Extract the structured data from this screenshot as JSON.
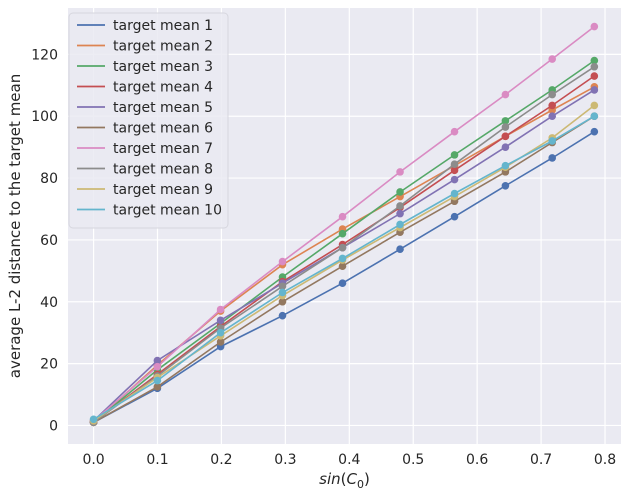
{
  "chart_data": {
    "type": "line",
    "title": "",
    "xlabel_prefix": "sin",
    "xlabel_var": "C",
    "xlabel_sub": "0",
    "ylabel": "average L-2 distance to the target mean",
    "xlim": [
      -0.04,
      0.825
    ],
    "ylim": [
      -6,
      135
    ],
    "xticks": [
      0.0,
      0.1,
      0.2,
      0.3,
      0.4,
      0.5,
      0.6,
      0.7,
      0.8
    ],
    "xtick_labels": [
      "0.0",
      "0.1",
      "0.2",
      "0.3",
      "0.4",
      "0.5",
      "0.6",
      "0.7",
      "0.8"
    ],
    "yticks": [
      0,
      20,
      40,
      60,
      80,
      100,
      120
    ],
    "ytick_labels": [
      "0",
      "20",
      "40",
      "60",
      "80",
      "100",
      "120"
    ],
    "grid": true,
    "legend_position": "top-left",
    "background": "#eaeaf2",
    "x": [
      0.0,
      0.0998,
      0.1987,
      0.2955,
      0.3894,
      0.4794,
      0.5646,
      0.6442,
      0.7174,
      0.7833
    ],
    "series": [
      {
        "name": "target mean 1",
        "color": "#4c72b0",
        "values": [
          1.0,
          12.0,
          25.5,
          35.5,
          46.0,
          57.0,
          67.5,
          77.5,
          86.5,
          95.0
        ]
      },
      {
        "name": "target mean 2",
        "color": "#dd8452",
        "values": [
          1.0,
          19.5,
          37.0,
          52.0,
          63.5,
          74.0,
          84.0,
          93.5,
          102.0,
          109.5
        ]
      },
      {
        "name": "target mean 3",
        "color": "#55a868",
        "values": [
          1.0,
          18.0,
          33.0,
          48.0,
          62.0,
          75.5,
          87.5,
          98.5,
          108.5,
          118.0
        ]
      },
      {
        "name": "target mean 4",
        "color": "#c44e52",
        "values": [
          1.0,
          16.5,
          32.0,
          46.5,
          58.5,
          70.5,
          82.5,
          93.5,
          103.5,
          113.0
        ]
      },
      {
        "name": "target mean 5",
        "color": "#8172b3",
        "values": [
          1.5,
          21.0,
          34.0,
          46.0,
          57.5,
          68.5,
          79.5,
          90.0,
          100.0,
          108.5
        ]
      },
      {
        "name": "target mean 6",
        "color": "#937860",
        "values": [
          1.0,
          12.5,
          27.0,
          40.0,
          51.5,
          62.5,
          72.5,
          82.0,
          91.5,
          100.0
        ]
      },
      {
        "name": "target mean 7",
        "color": "#da8bc3",
        "values": [
          1.5,
          19.0,
          37.5,
          53.0,
          67.5,
          82.0,
          95.0,
          107.0,
          118.5,
          129.0
        ]
      },
      {
        "name": "target mean 8",
        "color": "#8c8c8c",
        "values": [
          1.0,
          16.0,
          31.5,
          45.0,
          57.5,
          71.0,
          84.5,
          96.5,
          107.0,
          116.0
        ]
      },
      {
        "name": "target mean 9",
        "color": "#ccb974",
        "values": [
          1.5,
          15.5,
          29.0,
          42.0,
          53.5,
          64.0,
          74.0,
          83.5,
          93.0,
          103.5
        ]
      },
      {
        "name": "target mean 10",
        "color": "#64b5cd",
        "values": [
          2.0,
          14.5,
          30.0,
          43.0,
          54.0,
          65.0,
          75.0,
          84.0,
          92.0,
          100.0
        ]
      }
    ]
  }
}
